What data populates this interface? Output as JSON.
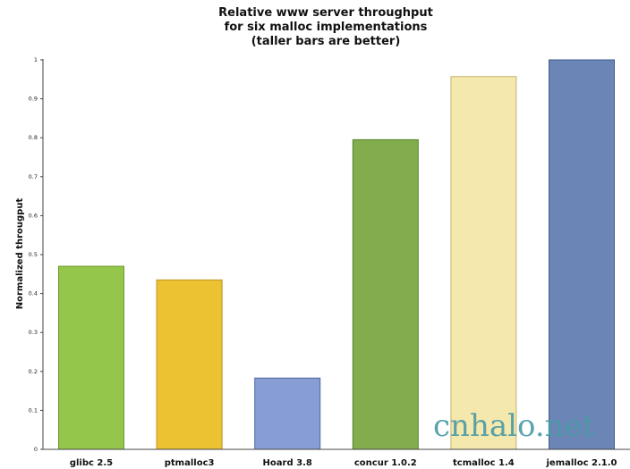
{
  "chart_data": {
    "type": "bar",
    "title": [
      "Relative www server throughput",
      "for six malloc implementations",
      "(taller bars are better)"
    ],
    "xlabel": "",
    "ylabel": "Normalized througput",
    "ylim": [
      0,
      1
    ],
    "yticks": [
      "0",
      "0.1",
      "0.2",
      "0.3",
      "0.4",
      "0.5",
      "0.6",
      "0.7",
      "0.8",
      "0.9",
      "1"
    ],
    "grid": false,
    "categories": [
      "glibc 2.5",
      "ptmalloc3",
      "Hoard 3.8",
      "concur 1.0.2",
      "tcmalloc 1.4",
      "jemalloc 2.1.0"
    ],
    "values": [
      0.47,
      0.435,
      0.183,
      0.795,
      0.957,
      1.0
    ],
    "colors": [
      "#94c64b",
      "#ecc232",
      "#869ed3",
      "#82ad4c",
      "#f5e8ad",
      "#6a85b6"
    ],
    "edge_colors": [
      "#6d9a2c",
      "#b89220",
      "#4f67a6",
      "#55802c",
      "#c2b070",
      "#3e5a8a"
    ]
  },
  "watermark": "cnhalo.net"
}
